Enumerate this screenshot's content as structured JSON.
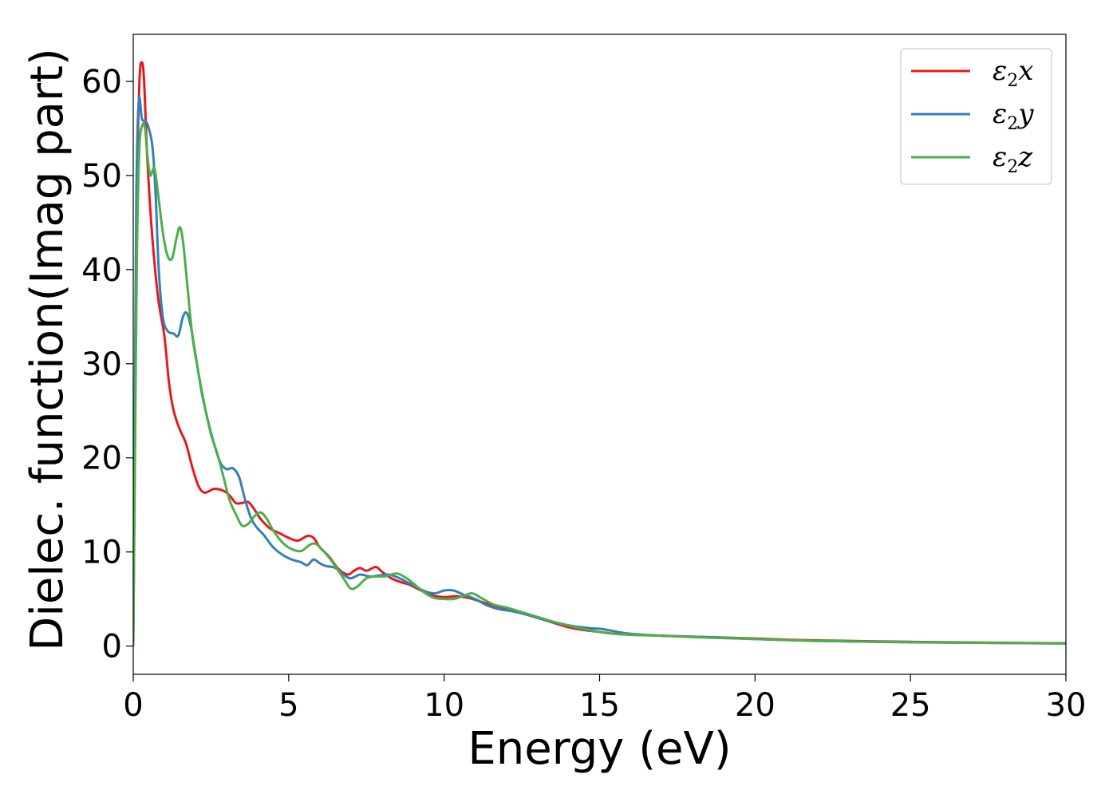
{
  "chart_data": {
    "type": "line",
    "title": "",
    "xlabel": "Energy (eV)",
    "ylabel": "Dielec. function(Imag part)",
    "xlim": [
      0,
      30
    ],
    "ylim": [
      -3,
      65
    ],
    "xticks": [
      0,
      5,
      10,
      15,
      20,
      25,
      30
    ],
    "yticks": [
      0,
      10,
      20,
      30,
      40,
      50,
      60
    ],
    "grid": false,
    "legend_position": "top-right",
    "series": [
      {
        "name": "ε2x",
        "legend_base": "ε",
        "legend_sub": "2",
        "legend_var": "x",
        "color": "#e41a1c",
        "points": [
          [
            0,
            0
          ],
          [
            0.05,
            20
          ],
          [
            0.12,
            48
          ],
          [
            0.2,
            60
          ],
          [
            0.28,
            62
          ],
          [
            0.35,
            60
          ],
          [
            0.45,
            52
          ],
          [
            0.6,
            44
          ],
          [
            0.8,
            37
          ],
          [
            1.0,
            33
          ],
          [
            1.15,
            28
          ],
          [
            1.3,
            25
          ],
          [
            1.5,
            23
          ],
          [
            1.7,
            21.5
          ],
          [
            1.9,
            19
          ],
          [
            2.1,
            17
          ],
          [
            2.3,
            16.3
          ],
          [
            2.6,
            16.7
          ],
          [
            2.9,
            16.5
          ],
          [
            3.1,
            16
          ],
          [
            3.3,
            15.2
          ],
          [
            3.5,
            15.2
          ],
          [
            3.7,
            15.3
          ],
          [
            3.9,
            14.5
          ],
          [
            4.1,
            13.5
          ],
          [
            4.4,
            12.5
          ],
          [
            4.7,
            12
          ],
          [
            5.0,
            11.5
          ],
          [
            5.3,
            11.2
          ],
          [
            5.6,
            11.7
          ],
          [
            5.8,
            11.5
          ],
          [
            6.0,
            10.5
          ],
          [
            6.3,
            9.5
          ],
          [
            6.6,
            8.2
          ],
          [
            6.9,
            7.6
          ],
          [
            7.1,
            8
          ],
          [
            7.3,
            8.3
          ],
          [
            7.5,
            8
          ],
          [
            7.8,
            8.4
          ],
          [
            8.0,
            7.9
          ],
          [
            8.3,
            7.2
          ],
          [
            8.6,
            6.8
          ],
          [
            8.9,
            6.5
          ],
          [
            9.2,
            6
          ],
          [
            9.6,
            5.4
          ],
          [
            10.0,
            5.2
          ],
          [
            10.4,
            5.3
          ],
          [
            10.8,
            5.1
          ],
          [
            11.2,
            4.7
          ],
          [
            11.6,
            4.3
          ],
          [
            12.0,
            4
          ],
          [
            12.5,
            3.5
          ],
          [
            13.0,
            3
          ],
          [
            13.5,
            2.5
          ],
          [
            14.0,
            2
          ],
          [
            14.5,
            1.7
          ],
          [
            15.0,
            1.5
          ],
          [
            15.5,
            1.3
          ],
          [
            16.0,
            1.2
          ],
          [
            17.0,
            1.1
          ],
          [
            18.0,
            1
          ],
          [
            19.0,
            0.9
          ],
          [
            20.0,
            0.8
          ],
          [
            22.0,
            0.6
          ],
          [
            25.0,
            0.45
          ],
          [
            28.0,
            0.35
          ],
          [
            30.0,
            0.3
          ]
        ]
      },
      {
        "name": "ε2y",
        "legend_base": "ε",
        "legend_sub": "2",
        "legend_var": "y",
        "color": "#377eb8",
        "points": [
          [
            0,
            0
          ],
          [
            0.05,
            24
          ],
          [
            0.1,
            48
          ],
          [
            0.18,
            58
          ],
          [
            0.28,
            56
          ],
          [
            0.4,
            55.8
          ],
          [
            0.5,
            55
          ],
          [
            0.62,
            53
          ],
          [
            0.72,
            48
          ],
          [
            0.82,
            40
          ],
          [
            0.95,
            35
          ],
          [
            1.1,
            33.5
          ],
          [
            1.3,
            33.2
          ],
          [
            1.45,
            33
          ],
          [
            1.6,
            35
          ],
          [
            1.72,
            35.4
          ],
          [
            1.85,
            34
          ],
          [
            2.0,
            31
          ],
          [
            2.2,
            27
          ],
          [
            2.4,
            24
          ],
          [
            2.6,
            21.5
          ],
          [
            2.8,
            19.5
          ],
          [
            3.0,
            18.8
          ],
          [
            3.2,
            18.9
          ],
          [
            3.4,
            18
          ],
          [
            3.6,
            15.5
          ],
          [
            3.8,
            13.5
          ],
          [
            4.0,
            12.5
          ],
          [
            4.2,
            11.8
          ],
          [
            4.5,
            10.5
          ],
          [
            4.8,
            9.7
          ],
          [
            5.1,
            9.2
          ],
          [
            5.4,
            8.9
          ],
          [
            5.6,
            8.6
          ],
          [
            5.8,
            9.2
          ],
          [
            6.0,
            8.8
          ],
          [
            6.2,
            8.5
          ],
          [
            6.5,
            8.3
          ],
          [
            6.8,
            7.5
          ],
          [
            7.0,
            7.2
          ],
          [
            7.3,
            7.6
          ],
          [
            7.6,
            7.4
          ],
          [
            7.9,
            7.5
          ],
          [
            8.2,
            7.6
          ],
          [
            8.5,
            7.3
          ],
          [
            8.8,
            6.8
          ],
          [
            9.1,
            6.3
          ],
          [
            9.4,
            5.8
          ],
          [
            9.7,
            5.6
          ],
          [
            10.0,
            5.9
          ],
          [
            10.3,
            5.9
          ],
          [
            10.6,
            5.5
          ],
          [
            11.0,
            5
          ],
          [
            11.4,
            4.3
          ],
          [
            11.8,
            3.9
          ],
          [
            12.2,
            3.7
          ],
          [
            12.7,
            3.3
          ],
          [
            13.2,
            2.8
          ],
          [
            13.7,
            2.4
          ],
          [
            14.2,
            2.1
          ],
          [
            14.7,
            1.9
          ],
          [
            15.1,
            1.8
          ],
          [
            15.6,
            1.5
          ],
          [
            16.0,
            1.3
          ],
          [
            17.0,
            1.1
          ],
          [
            18.0,
            1
          ],
          [
            19.0,
            0.9
          ],
          [
            20.0,
            0.75
          ],
          [
            22.0,
            0.55
          ],
          [
            25.0,
            0.4
          ],
          [
            28.0,
            0.33
          ],
          [
            30.0,
            0.28
          ]
        ]
      },
      {
        "name": "ε2z",
        "legend_base": "ε",
        "legend_sub": "2",
        "legend_var": "z",
        "color": "#4daf4a",
        "points": [
          [
            0,
            0
          ],
          [
            0.05,
            18
          ],
          [
            0.12,
            42
          ],
          [
            0.2,
            53
          ],
          [
            0.3,
            55.4
          ],
          [
            0.38,
            55
          ],
          [
            0.46,
            52
          ],
          [
            0.55,
            50
          ],
          [
            0.68,
            50.8
          ],
          [
            0.8,
            48
          ],
          [
            0.95,
            44
          ],
          [
            1.1,
            41.5
          ],
          [
            1.25,
            41.2
          ],
          [
            1.4,
            43.5
          ],
          [
            1.5,
            44.5
          ],
          [
            1.6,
            43
          ],
          [
            1.75,
            38
          ],
          [
            1.9,
            33
          ],
          [
            2.1,
            29
          ],
          [
            2.3,
            25.5
          ],
          [
            2.5,
            22.5
          ],
          [
            2.7,
            20.5
          ],
          [
            2.9,
            18
          ],
          [
            3.1,
            15.5
          ],
          [
            3.3,
            14
          ],
          [
            3.5,
            12.8
          ],
          [
            3.7,
            13
          ],
          [
            3.9,
            13.8
          ],
          [
            4.1,
            14.2
          ],
          [
            4.3,
            13.5
          ],
          [
            4.5,
            12.3
          ],
          [
            4.8,
            11
          ],
          [
            5.1,
            10.3
          ],
          [
            5.4,
            10.1
          ],
          [
            5.7,
            10.8
          ],
          [
            5.9,
            10.8
          ],
          [
            6.2,
            9.8
          ],
          [
            6.5,
            8.5
          ],
          [
            6.8,
            7
          ],
          [
            7.0,
            6.1
          ],
          [
            7.2,
            6.3
          ],
          [
            7.5,
            7.2
          ],
          [
            7.8,
            7.4
          ],
          [
            8.1,
            7.4
          ],
          [
            8.3,
            7.6
          ],
          [
            8.5,
            7.7
          ],
          [
            8.8,
            7.2
          ],
          [
            9.1,
            6.4
          ],
          [
            9.4,
            5.6
          ],
          [
            9.7,
            5.1
          ],
          [
            10.0,
            5
          ],
          [
            10.3,
            5
          ],
          [
            10.6,
            5.3
          ],
          [
            10.9,
            5.6
          ],
          [
            11.2,
            5.1
          ],
          [
            11.6,
            4.4
          ],
          [
            12.0,
            4.1
          ],
          [
            12.5,
            3.6
          ],
          [
            13.0,
            3.1
          ],
          [
            13.5,
            2.6
          ],
          [
            14.0,
            2.2
          ],
          [
            14.5,
            1.8
          ],
          [
            15.0,
            1.5
          ],
          [
            15.5,
            1.3
          ],
          [
            16.0,
            1.2
          ],
          [
            17.0,
            1.1
          ],
          [
            18.0,
            0.95
          ],
          [
            19.0,
            0.85
          ],
          [
            20.0,
            0.75
          ],
          [
            22.0,
            0.55
          ],
          [
            25.0,
            0.42
          ],
          [
            28.0,
            0.33
          ],
          [
            30.0,
            0.28
          ]
        ]
      }
    ]
  }
}
